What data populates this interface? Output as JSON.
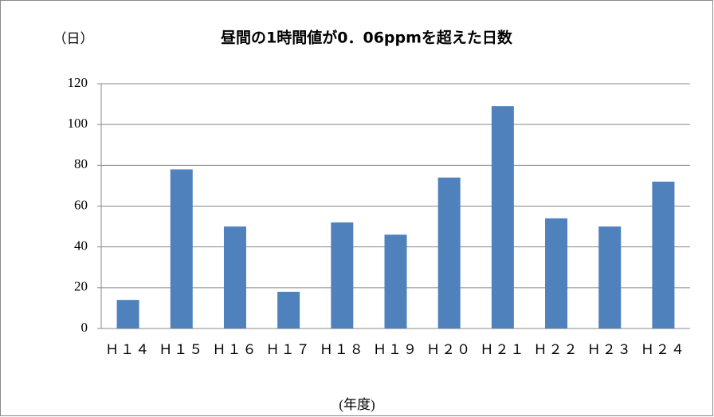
{
  "chart_data": {
    "type": "bar",
    "title": "昼間の1時間値が0．06ppmを超えた日数",
    "y_label": "（日）",
    "x_label": "(年度)",
    "categories": [
      "Ｈ１４",
      "Ｈ１５",
      "Ｈ１６",
      "Ｈ１７",
      "Ｈ１８",
      "Ｈ１９",
      "Ｈ２０",
      "Ｈ２１",
      "Ｈ２２",
      "Ｈ２３",
      "Ｈ２４"
    ],
    "values": [
      14,
      78,
      50,
      18,
      52,
      46,
      74,
      109,
      54,
      50,
      72
    ],
    "color": "#4f81bd",
    "ylim": [
      0,
      120
    ],
    "yticks": [
      0,
      20,
      40,
      60,
      80,
      100,
      120
    ],
    "grid": true
  }
}
